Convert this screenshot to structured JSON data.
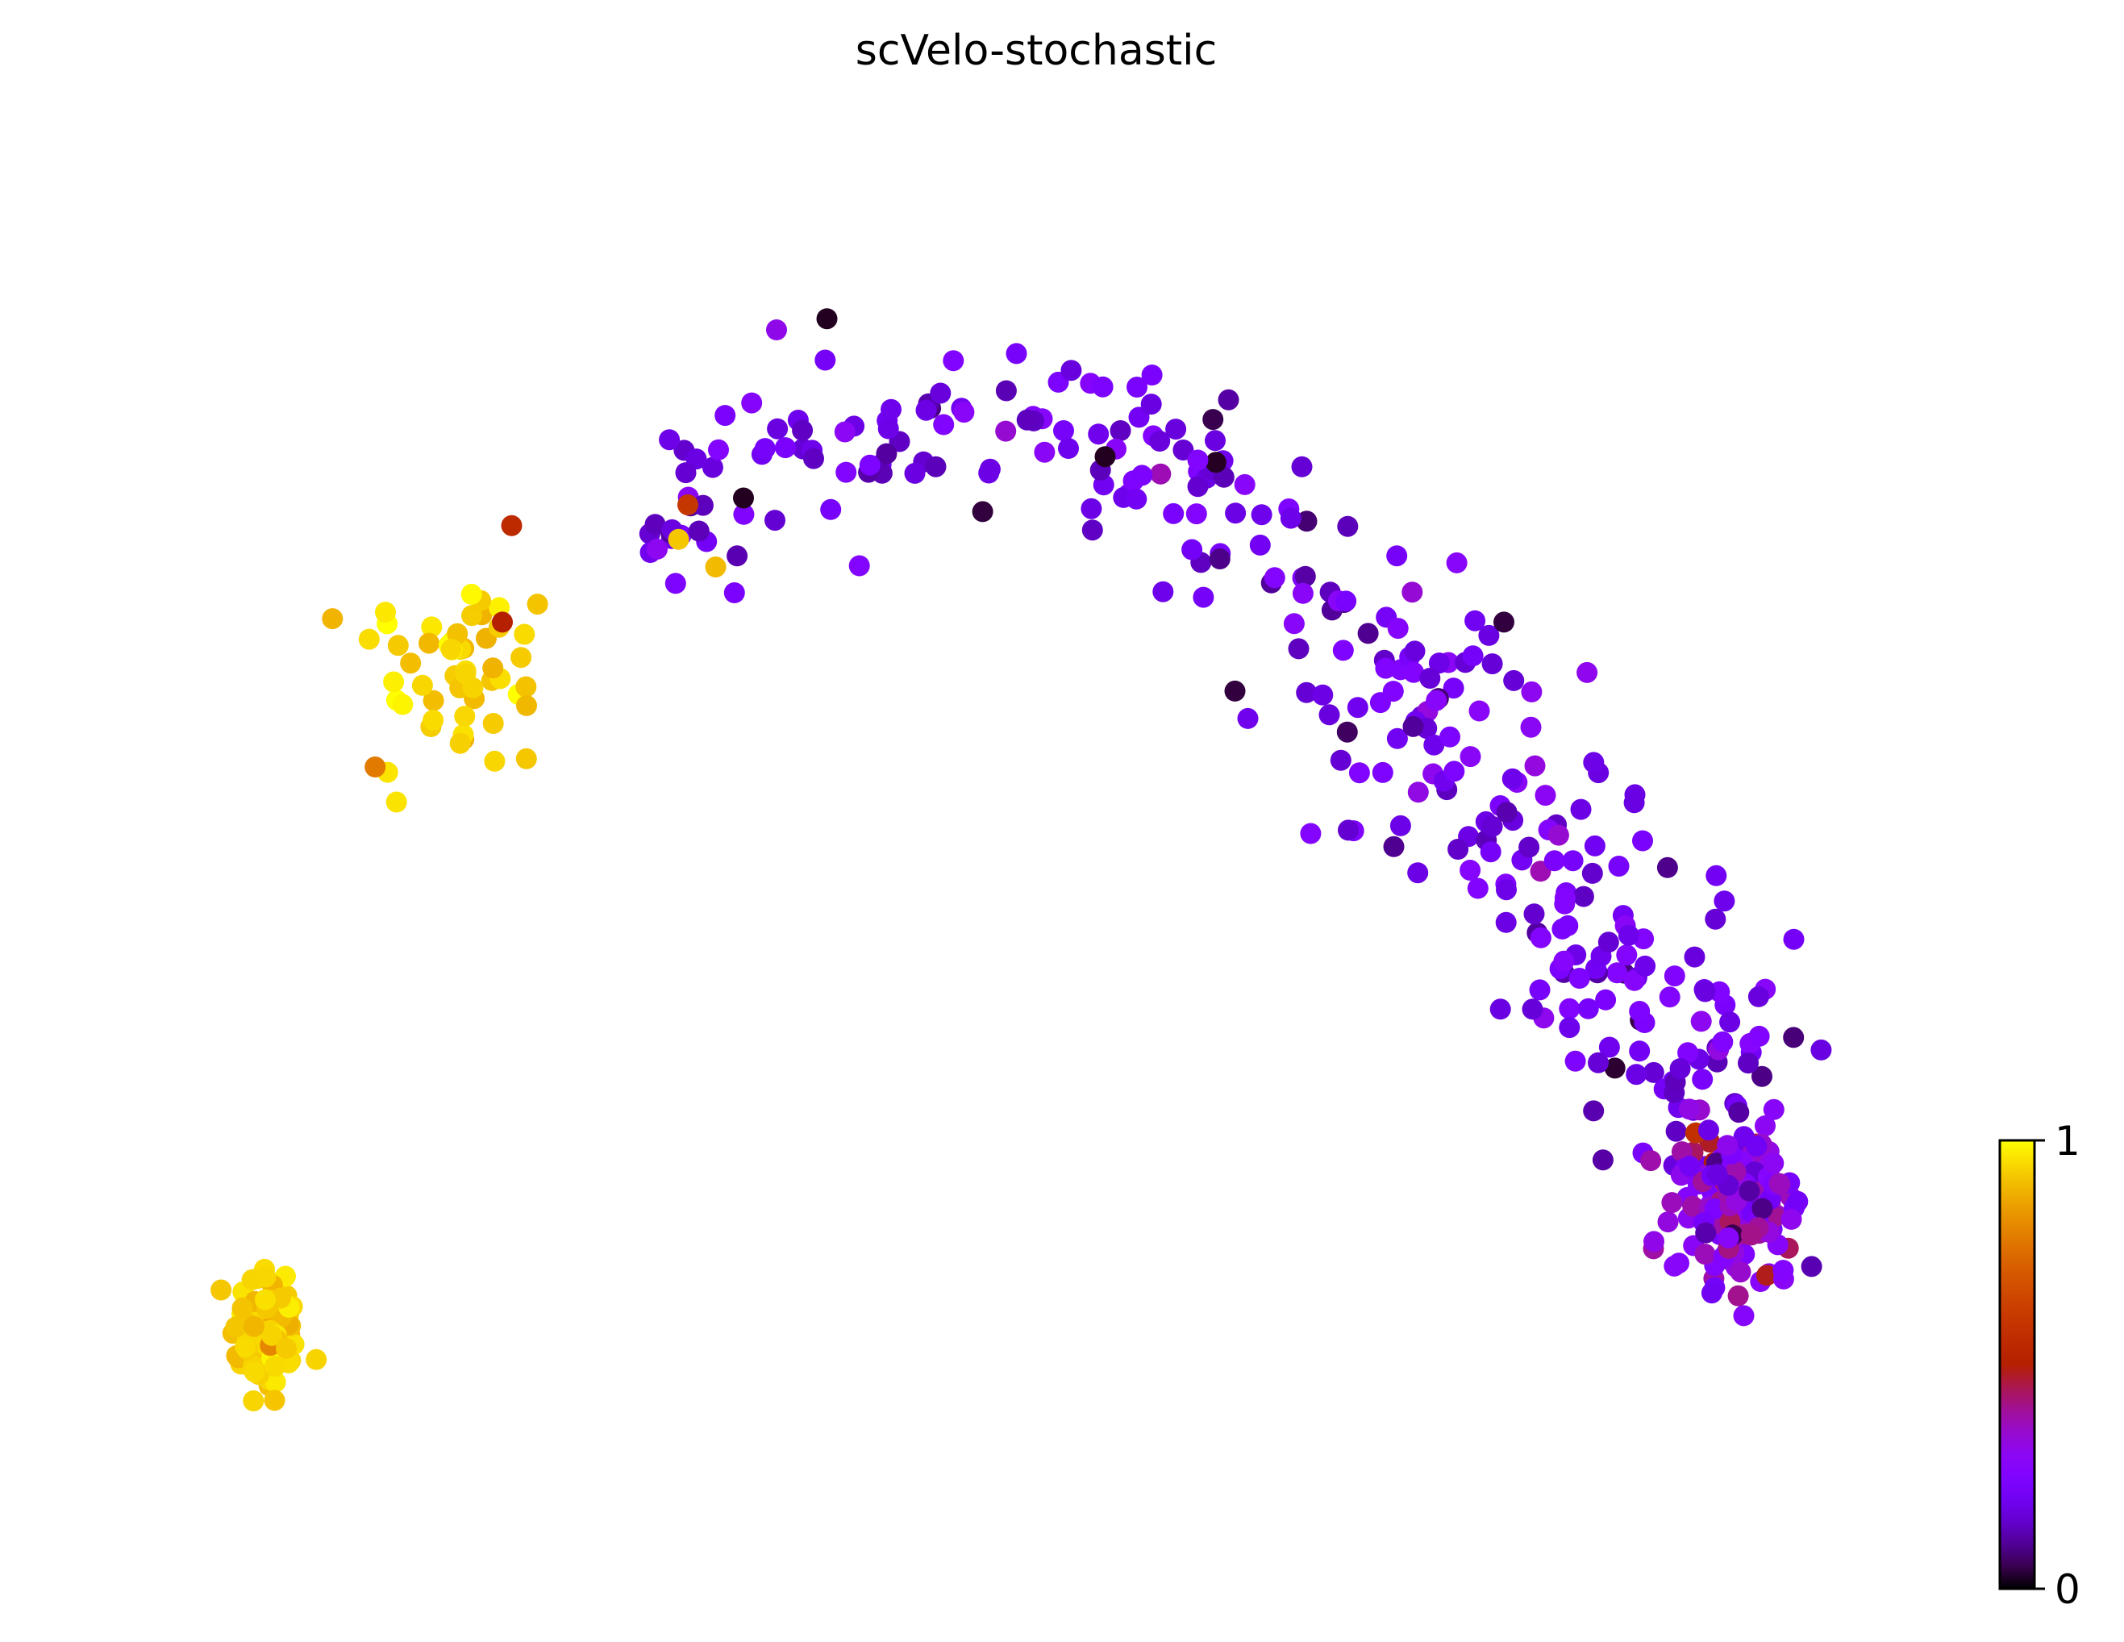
{
  "chart_data": {
    "type": "scatter",
    "title": "scVelo-stochastic",
    "xlabel": "",
    "ylabel": "",
    "axes_visible": false,
    "grid": false,
    "legend": "none",
    "colorbar": {
      "cmap": "gnuplot",
      "range": [
        0,
        1
      ],
      "tick_labels": [
        "1",
        "0"
      ],
      "placement": "bottom-right"
    },
    "clusters": [
      {
        "id": "bottom-left",
        "center": [
          0.083,
          0.145
        ],
        "spread": [
          0.016,
          0.045
        ],
        "count": 75,
        "value": 0.93,
        "value_jitter": 0.03
      },
      {
        "id": "upper-left",
        "center": [
          0.185,
          0.62
        ],
        "spread": [
          0.045,
          0.07
        ],
        "count": 55,
        "value": 0.95,
        "value_jitter": 0.04
      },
      {
        "id": "top-arc",
        "path": [
          [
            0.3,
            0.72
          ],
          [
            0.4,
            0.8
          ],
          [
            0.52,
            0.81
          ],
          [
            0.6,
            0.75
          ],
          [
            0.66,
            0.66
          ],
          [
            0.72,
            0.58
          ],
          [
            0.77,
            0.5
          ],
          [
            0.81,
            0.42
          ],
          [
            0.84,
            0.35
          ],
          [
            0.86,
            0.28
          ]
        ],
        "spread": 0.03,
        "count": 330,
        "value": 0.2,
        "value_jitter": 0.06
      },
      {
        "id": "bottom-right-dense",
        "center": [
          0.875,
          0.24
        ],
        "spread": [
          0.03,
          0.05
        ],
        "count": 160,
        "value": 0.3,
        "value_jitter": 0.08
      }
    ],
    "outliers": [
      {
        "x": 0.215,
        "y": 0.73,
        "value": 0.55
      },
      {
        "x": 0.21,
        "y": 0.66,
        "value": 0.5
      },
      {
        "x": 0.31,
        "y": 0.745,
        "value": 0.6
      },
      {
        "x": 0.34,
        "y": 0.75,
        "value": 0.02
      },
      {
        "x": 0.385,
        "y": 0.88,
        "value": 0.02
      },
      {
        "x": 0.535,
        "y": 0.78,
        "value": 0.02
      },
      {
        "x": 0.305,
        "y": 0.72,
        "value": 0.92
      },
      {
        "x": 0.325,
        "y": 0.7,
        "value": 0.9
      },
      {
        "x": 0.605,
        "y": 0.61,
        "value": 0.04
      },
      {
        "x": 0.75,
        "y": 0.66,
        "value": 0.04
      }
    ]
  }
}
